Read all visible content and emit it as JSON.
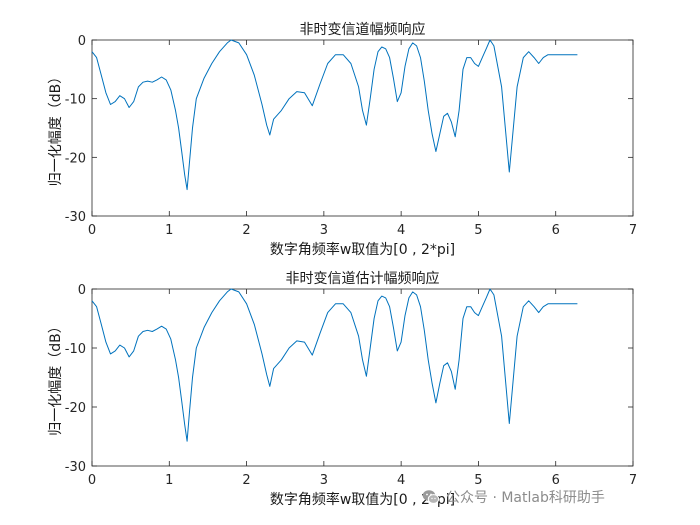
{
  "watermark": {
    "text": "公众号 · Matlab科研助手",
    "icon": "wechat-icon"
  },
  "chart_data": [
    {
      "type": "line",
      "title": "非时变信道幅频响应",
      "xlabel": "数字角频率w取值为[0 , 2*pi]",
      "ylabel": "归一化幅度（dB）",
      "xlim": [
        0,
        7
      ],
      "ylim": [
        -30,
        0
      ],
      "xticks": [
        0,
        1,
        2,
        3,
        4,
        5,
        6,
        7
      ],
      "yticks": [
        0,
        -10,
        -20,
        -30
      ],
      "grid": false,
      "color": "#0072BD",
      "series": [
        {
          "x": [
            0,
            0.06,
            0.12,
            0.18,
            0.24,
            0.3,
            0.36,
            0.42,
            0.48,
            0.54,
            0.6,
            0.66,
            0.72,
            0.78,
            0.84,
            0.9,
            0.96,
            1.02,
            1.08,
            1.12,
            1.16,
            1.2,
            1.23,
            1.26,
            1.3,
            1.35,
            1.45,
            1.55,
            1.65,
            1.75,
            1.8,
            1.9,
            2.0,
            2.1,
            2.2,
            2.26,
            2.3,
            2.35,
            2.45,
            2.55,
            2.65,
            2.75,
            2.85,
            2.95,
            3.05,
            3.15,
            3.25,
            3.35,
            3.45,
            3.5,
            3.55,
            3.6,
            3.65,
            3.7,
            3.75,
            3.8,
            3.85,
            3.9,
            3.95,
            4.0,
            4.05,
            4.1,
            4.15,
            4.2,
            4.25,
            4.3,
            4.35,
            4.4,
            4.45,
            4.5,
            4.55,
            4.6,
            4.65,
            4.7,
            4.75,
            4.8,
            4.85,
            4.9,
            4.95,
            5.0,
            5.05,
            5.1,
            5.15,
            5.2,
            5.3,
            5.4,
            5.5,
            5.58,
            5.65,
            5.72,
            5.78,
            5.81,
            5.84,
            5.9,
            5.95,
            6.0,
            6.05,
            6.1,
            6.15,
            6.2,
            6.28
          ],
          "y": [
            -2,
            -3,
            -6,
            -9,
            -11,
            -10.5,
            -9.5,
            -10,
            -11.5,
            -10.5,
            -8,
            -7.2,
            -7,
            -7.2,
            -6.8,
            -6.3,
            -6.8,
            -8.5,
            -12,
            -15,
            -19,
            -23,
            -25.5,
            -21,
            -15,
            -10,
            -6.5,
            -4,
            -2,
            -0.5,
            0,
            -0.5,
            -2.5,
            -6,
            -11,
            -14.5,
            -16.2,
            -13.5,
            -12,
            -10,
            -8.8,
            -9,
            -11.2,
            -7.5,
            -4,
            -2.5,
            -2.5,
            -4,
            -8,
            -12,
            -14.5,
            -10,
            -5,
            -2,
            -1.2,
            -1.5,
            -3,
            -6.5,
            -10.5,
            -9,
            -4.5,
            -1.5,
            -0.5,
            -1,
            -3,
            -7,
            -12,
            -16,
            -19,
            -16,
            -13,
            -12.5,
            -14,
            -16.5,
            -12,
            -5,
            -3,
            -3,
            -4,
            -4.5,
            -3,
            -1.5,
            0,
            -1,
            -8,
            -22.5,
            -8,
            -3,
            -2,
            -3,
            -4,
            -3.5,
            -3,
            -2.5,
            -2.5,
            -2.5,
            -2.5,
            -2.5,
            -2.5,
            -2.5,
            -2.5
          ]
        }
      ]
    },
    {
      "type": "line",
      "title": "非时变信道估计幅频响应",
      "xlabel": "数字角频率w取值为[0 , 2*pi]",
      "ylabel": "归一化幅度（dB）",
      "xlim": [
        0,
        7
      ],
      "ylim": [
        -30,
        0
      ],
      "xticks": [
        0,
        1,
        2,
        3,
        4,
        5,
        6,
        7
      ],
      "yticks": [
        0,
        -10,
        -20,
        -30
      ],
      "grid": false,
      "color": "#0072BD",
      "series": [
        {
          "x": [
            0,
            0.06,
            0.12,
            0.18,
            0.24,
            0.3,
            0.36,
            0.42,
            0.48,
            0.54,
            0.6,
            0.66,
            0.72,
            0.78,
            0.84,
            0.9,
            0.96,
            1.02,
            1.08,
            1.12,
            1.16,
            1.2,
            1.23,
            1.26,
            1.3,
            1.35,
            1.45,
            1.55,
            1.65,
            1.75,
            1.8,
            1.9,
            2.0,
            2.1,
            2.2,
            2.26,
            2.3,
            2.35,
            2.45,
            2.55,
            2.65,
            2.75,
            2.85,
            2.95,
            3.05,
            3.15,
            3.25,
            3.35,
            3.45,
            3.5,
            3.55,
            3.6,
            3.65,
            3.7,
            3.75,
            3.8,
            3.85,
            3.9,
            3.95,
            4.0,
            4.05,
            4.1,
            4.15,
            4.2,
            4.25,
            4.3,
            4.35,
            4.4,
            4.45,
            4.5,
            4.55,
            4.6,
            4.65,
            4.7,
            4.75,
            4.8,
            4.85,
            4.9,
            4.95,
            5.0,
            5.05,
            5.1,
            5.15,
            5.2,
            5.3,
            5.4,
            5.5,
            5.58,
            5.65,
            5.72,
            5.78,
            5.81,
            5.84,
            5.9,
            5.95,
            6.0,
            6.05,
            6.1,
            6.15,
            6.2,
            6.28
          ],
          "y": [
            -2,
            -3,
            -6,
            -9,
            -11,
            -10.5,
            -9.5,
            -10,
            -11.5,
            -10.5,
            -8,
            -7.2,
            -7,
            -7.2,
            -6.8,
            -6.3,
            -6.8,
            -8.5,
            -12,
            -15,
            -19,
            -23,
            -25.8,
            -21,
            -15,
            -10,
            -6.5,
            -4,
            -2,
            -0.5,
            0,
            -0.5,
            -2.5,
            -6,
            -11,
            -14.5,
            -16.5,
            -13.5,
            -12,
            -10,
            -8.8,
            -9,
            -11.2,
            -7.5,
            -4,
            -2.5,
            -2.5,
            -4,
            -8,
            -12,
            -14.8,
            -10,
            -5,
            -2,
            -1.2,
            -1.5,
            -3,
            -6.5,
            -10.5,
            -9,
            -4.5,
            -1.5,
            -0.5,
            -1,
            -3,
            -7,
            -12,
            -16,
            -19.3,
            -16,
            -13,
            -12.5,
            -14,
            -17,
            -12,
            -5,
            -3,
            -3,
            -4,
            -4.5,
            -3,
            -1.5,
            0,
            -1,
            -8,
            -22.8,
            -8,
            -3,
            -2,
            -3,
            -4,
            -3.5,
            -3,
            -2.5,
            -2.5,
            -2.5,
            -2.5,
            -2.5,
            -2.5,
            -2.5,
            -2.5
          ]
        }
      ]
    }
  ]
}
